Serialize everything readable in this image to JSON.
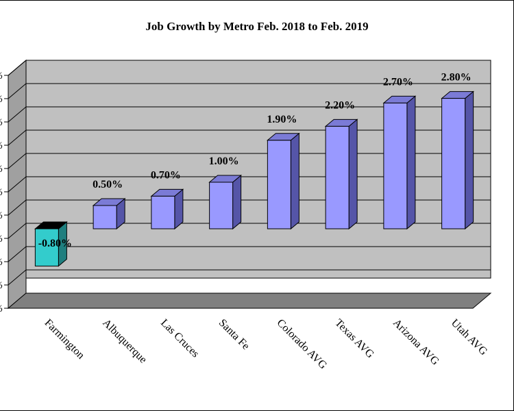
{
  "chart_data": {
    "type": "bar",
    "title": "Job Growth by Metro Feb. 2018 to Feb. 2019",
    "xlabel": "",
    "ylabel": "",
    "categories": [
      "Farmington",
      "Albuquerque",
      "Las Cruces",
      "Santa Fe",
      "Colorado AVG",
      "Texas AVG",
      "Arizona AVG",
      "Utah AVG"
    ],
    "values": [
      -0.8,
      0.5,
      0.7,
      1.0,
      1.9,
      2.2,
      2.7,
      2.8
    ],
    "data_labels": [
      "-0.80%",
      "0.50%",
      "0.70%",
      "1.00%",
      "1.90%",
      "2.20%",
      "2.70%",
      "2.80%"
    ],
    "ylim": [
      -1.5,
      3.5
    ],
    "grid": true,
    "legend": "none",
    "colors": {
      "positive_bar": "#9999ff",
      "positive_side": "#5555a8",
      "negative_bar": "#33cccc",
      "negative_side": "#1f7f7f",
      "plot_wall": "#c0c0c0",
      "floor": "#808080"
    }
  }
}
